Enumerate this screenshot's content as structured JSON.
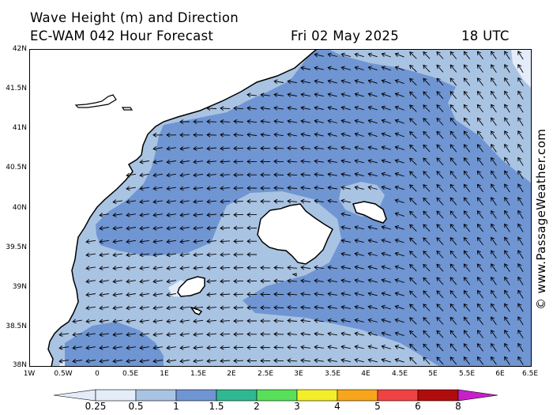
{
  "header": {
    "line1": "Wave Height (m) and Direction",
    "line2_left": "EC-WAM 042 Hour Forecast",
    "line2_date": "Fri 02 May 2025",
    "line2_time": "18 UTC"
  },
  "axes": {
    "y_labels": [
      "42N",
      "41.5N",
      "41N",
      "40.5N",
      "40N",
      "39.5N",
      "39N",
      "38.5N",
      "38N"
    ],
    "x_labels": [
      "1W",
      "0.5W",
      "0",
      "0.5E",
      "1E",
      "1.5E",
      "2E",
      "2.5E",
      "3E",
      "3.5E",
      "4E",
      "4.5E",
      "5E",
      "5.5E",
      "6E",
      "6.5E"
    ]
  },
  "credit": "© www.PassageWeather.com",
  "colorbar": {
    "labels": [
      "0.25",
      "0.5",
      "1",
      "1.5",
      "2",
      "3",
      "4",
      "5",
      "6",
      "8"
    ],
    "colors": [
      "#e3ecf8",
      "#a9c3e3",
      "#6f95d3",
      "#2fb892",
      "#58e05a",
      "#f2ef2a",
      "#f7a61c",
      "#f04242",
      "#b10c0c",
      "#c81fc8"
    ]
  },
  "map_colors": {
    "land": "#ffffff",
    "sea_025_05": "#e3ecf8",
    "sea_05_1": "#a9c3e3",
    "sea_1_15": "#6f95d3",
    "arrow": "#000000"
  }
}
